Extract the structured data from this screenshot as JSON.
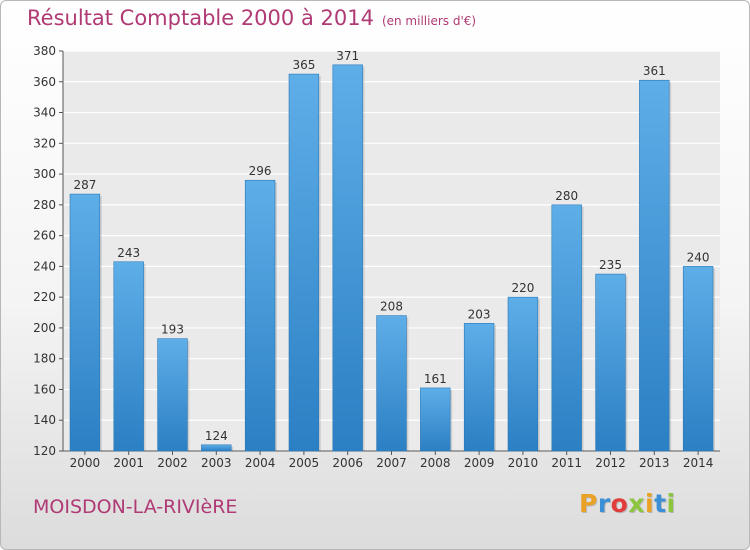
{
  "header": {
    "title": "Résultat Comptable 2000 à 2014",
    "subtitle": "(en milliers d'€)"
  },
  "footer": {
    "commune": "MOISDON-LA-RIVIèRE",
    "logo": "Proxiti",
    "logo_colors": [
      "#e9a126",
      "#3b8fd6",
      "#e23d3d",
      "#8cc63e",
      "#e9a126",
      "#3b8fd6",
      "#8cc63e"
    ]
  },
  "chart_data": {
    "type": "bar",
    "title": "Résultat Comptable 2000 à 2014",
    "subtitle": "(en milliers d'€)",
    "xlabel": "",
    "ylabel": "",
    "categories": [
      "2000",
      "2001",
      "2002",
      "2003",
      "2004",
      "2005",
      "2006",
      "2007",
      "2008",
      "2009",
      "2010",
      "2011",
      "2012",
      "2013",
      "2014"
    ],
    "values": [
      287,
      243,
      193,
      124,
      296,
      365,
      371,
      208,
      161,
      203,
      220,
      280,
      235,
      361,
      240
    ],
    "ylim": [
      120,
      380
    ],
    "yticks": [
      120,
      140,
      160,
      180,
      200,
      220,
      240,
      260,
      280,
      300,
      320,
      340,
      360,
      380
    ],
    "grid": true,
    "bar_color_top": "#5eaee8",
    "bar_color_bottom": "#2b7fc3"
  }
}
